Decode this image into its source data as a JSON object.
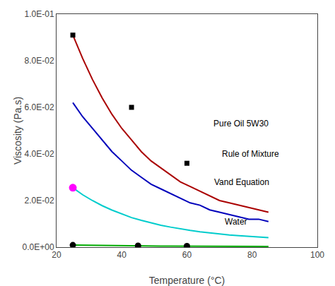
{
  "chart_data": {
    "type": "line",
    "xlabel": "Temperature (°C)",
    "ylabel": "Viscosity (Pa.s)",
    "xlim": [
      20,
      100
    ],
    "ylim": [
      0,
      0.1
    ],
    "xticks": [
      20,
      40,
      60,
      80,
      100
    ],
    "yticks": [
      {
        "value": 0.0,
        "label": "0.0E+00"
      },
      {
        "value": 0.02,
        "label": "2.0E-02"
      },
      {
        "value": 0.04,
        "label": "4.0E-02"
      },
      {
        "value": 0.06,
        "label": "6.0E-02"
      },
      {
        "value": 0.08,
        "label": "8.0E-02"
      },
      {
        "value": 0.1,
        "label": "1.0E-01"
      }
    ],
    "grid": false,
    "series": [
      {
        "name": "Pure Oil 5W30",
        "type": "line",
        "color": "#aa0000",
        "x": [
          25,
          28,
          31,
          34,
          37,
          40,
          43,
          46,
          49,
          52,
          55,
          58,
          61,
          64,
          67,
          70,
          73,
          76,
          79,
          82,
          85
        ],
        "values": [
          0.091,
          0.081,
          0.072,
          0.064,
          0.057,
          0.051,
          0.046,
          0.041,
          0.037,
          0.034,
          0.031,
          0.028,
          0.026,
          0.024,
          0.022,
          0.02,
          0.019,
          0.018,
          0.017,
          0.016,
          0.015
        ]
      },
      {
        "type": "scatter",
        "color": "black",
        "marker": "square",
        "x": [
          25,
          43,
          60
        ],
        "values": [
          0.091,
          0.06,
          0.036
        ]
      },
      {
        "name": "Rule of Mixture",
        "type": "line",
        "color": "#0000bb",
        "x": [
          25,
          28,
          31,
          34,
          37,
          40,
          43,
          46,
          49,
          52,
          55,
          58,
          61,
          64,
          67,
          70,
          73,
          76,
          79,
          82,
          85
        ],
        "values": [
          0.062,
          0.056,
          0.051,
          0.046,
          0.041,
          0.037,
          0.033,
          0.03,
          0.027,
          0.025,
          0.023,
          0.021,
          0.019,
          0.018,
          0.016,
          0.015,
          0.014,
          0.013,
          0.012,
          0.012,
          0.011
        ]
      },
      {
        "name": "Vand Equation",
        "type": "line",
        "color": "#00cccc",
        "x": [
          25,
          28,
          31,
          34,
          37,
          40,
          43,
          46,
          49,
          52,
          55,
          58,
          61,
          64,
          67,
          70,
          73,
          76,
          79,
          82,
          85
        ],
        "values": [
          0.0255,
          0.0225,
          0.02,
          0.0178,
          0.0159,
          0.0142,
          0.0127,
          0.0115,
          0.0104,
          0.0094,
          0.0086,
          0.0078,
          0.0072,
          0.0066,
          0.0061,
          0.0056,
          0.0052,
          0.0049,
          0.0046,
          0.0043,
          0.0041
        ]
      },
      {
        "type": "scatter",
        "color": "magenta",
        "marker": "circle",
        "x": [
          25
        ],
        "values": [
          0.0255
        ]
      },
      {
        "name": "Water",
        "type": "line",
        "color": "#00aa00",
        "x": [
          25,
          28,
          31,
          34,
          37,
          40,
          43,
          46,
          49,
          52,
          55,
          58,
          61,
          64,
          67,
          70,
          73,
          76,
          79,
          82,
          85
        ],
        "values": [
          0.00089,
          0.00082,
          0.00076,
          0.00071,
          0.00066,
          0.00062,
          0.00058,
          0.00055,
          0.00052,
          0.00049,
          0.00047,
          0.00044,
          0.00042,
          0.0004,
          0.00039,
          0.00037,
          0.00035,
          0.00034,
          0.00033,
          0.00032,
          0.00031
        ]
      },
      {
        "type": "scatter",
        "color": "black",
        "marker": "circle",
        "x": [
          25,
          45,
          60
        ],
        "values": [
          0.00089,
          0.0006,
          0.00047
        ]
      }
    ]
  }
}
